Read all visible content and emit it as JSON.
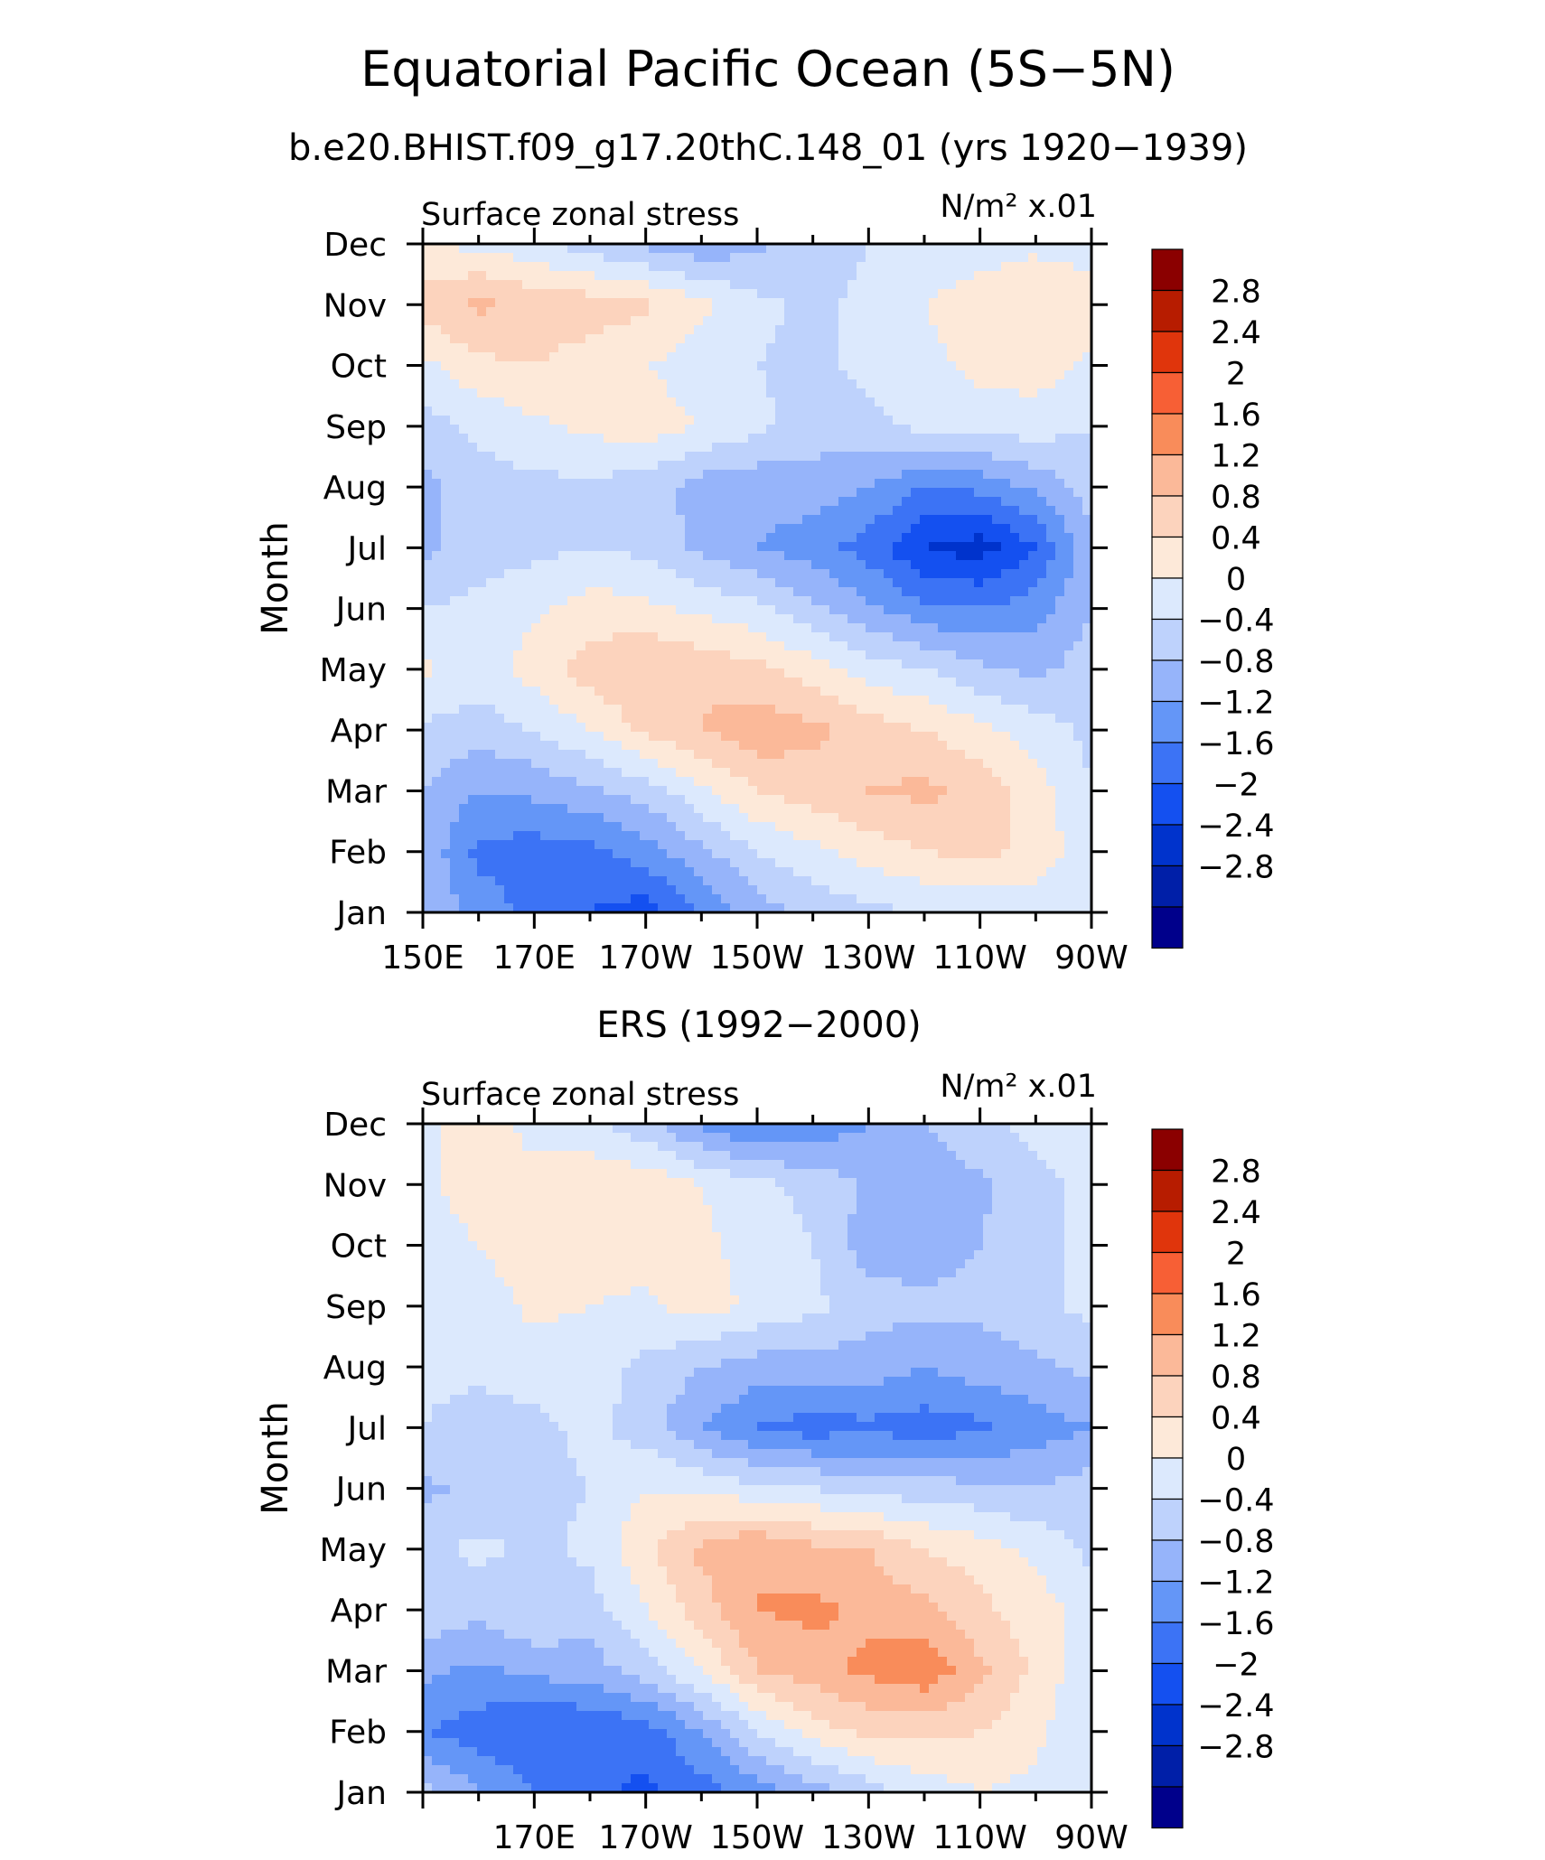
{
  "figure": {
    "title": "Equatorial Pacific Ocean (5S−5N)",
    "subtitle": "b.e20.BHIST.f09_g17.20thC.148_01 (yrs 1920−1939)"
  },
  "palette": [
    "#00008b",
    "#001fa8",
    "#0033cc",
    "#1450f0",
    "#3c73f5",
    "#6496f7",
    "#96b4fa",
    "#bed2fc",
    "#dce9fd",
    "#fde9d9",
    "#fcd3bd",
    "#fbb999",
    "#f98c5a",
    "#f75f35",
    "#e0350c",
    "#b71c00",
    "#8b0000"
  ],
  "chart_data": [
    {
      "type": "heatmap",
      "panel_title": "",
      "variable_label": "Surface zonal stress",
      "units_label": "N/m² x.01",
      "ylabel": "Month",
      "x": [
        150,
        160,
        170,
        180,
        190,
        200,
        210,
        220,
        230,
        240,
        250,
        260,
        270
      ],
      "x_tick_labels": [
        {
          "lon": 150,
          "label": "150E"
        },
        {
          "lon": 170,
          "label": "170E"
        },
        {
          "lon": 190,
          "label": "170W"
        },
        {
          "lon": 210,
          "label": "150W"
        },
        {
          "lon": 230,
          "label": "130W"
        },
        {
          "lon": 250,
          "label": "110W"
        },
        {
          "lon": 270,
          "label": "90W"
        }
      ],
      "y": [
        "Jan",
        "Feb",
        "Mar",
        "Apr",
        "May",
        "Jun",
        "Jul",
        "Aug",
        "Sep",
        "Oct",
        "Nov",
        "Dec"
      ],
      "levels": [
        -2.8,
        -2.4,
        -2,
        -1.6,
        -1.2,
        -0.8,
        -0.4,
        0,
        0.4,
        0.8,
        1.2,
        1.6,
        2,
        2.4,
        2.8
      ],
      "colorbar_labels": [
        "2.8",
        "2.4",
        "2",
        "1.6",
        "1.2",
        "0.8",
        "0.4",
        "0",
        "−0.4",
        "−0.8",
        "−1.2",
        "−1.6",
        "−2",
        "−2.4",
        "−2.8"
      ],
      "values": [
        [
          -0.4,
          -1.0,
          -1.3,
          -1.6,
          -1.8,
          -1.2,
          -0.6,
          -0.3,
          -0.1,
          0.0,
          0.1,
          0.1,
          0.0
        ],
        [
          -0.5,
          -1.3,
          -1.4,
          -1.3,
          -1.0,
          -0.5,
          0.0,
          0.3,
          0.6,
          0.8,
          0.9,
          0.7,
          0.1
        ],
        [
          -0.4,
          -0.8,
          -0.7,
          -0.5,
          -0.2,
          0.3,
          0.8,
          1.0,
          1.2,
          1.3,
          1.1,
          0.6,
          0.0
        ],
        [
          -0.1,
          -0.2,
          0.0,
          0.4,
          0.9,
          1.2,
          1.5,
          1.3,
          1.0,
          0.8,
          0.5,
          0.2,
          -0.1
        ],
        [
          0.5,
          0.2,
          0.6,
          1.0,
          1.2,
          1.1,
          0.9,
          0.6,
          0.2,
          0.0,
          -0.3,
          -0.5,
          -0.2
        ],
        [
          0.0,
          0.1,
          0.3,
          0.6,
          0.5,
          0.3,
          0.1,
          -0.3,
          -0.7,
          -1.1,
          -1.2,
          -1.0,
          -0.4
        ],
        [
          -0.5,
          -0.2,
          -0.1,
          0.0,
          -0.1,
          -0.5,
          -0.8,
          -1.0,
          -1.4,
          -2.0,
          -2.2,
          -1.6,
          -0.5
        ],
        [
          -0.5,
          -0.2,
          -0.1,
          -0.1,
          -0.2,
          -0.6,
          -0.7,
          -0.6,
          -0.8,
          -1.2,
          -1.1,
          -0.7,
          -0.2
        ],
        [
          -0.2,
          0.1,
          0.3,
          0.5,
          0.6,
          0.4,
          0.1,
          -0.2,
          -0.1,
          0.1,
          0.2,
          0.2,
          0.0
        ],
        [
          0.3,
          0.7,
          0.8,
          0.6,
          0.4,
          0.2,
          0.0,
          -0.1,
          0.1,
          0.3,
          0.5,
          0.6,
          0.3
        ],
        [
          1.0,
          1.3,
          1.1,
          1.0,
          0.9,
          0.5,
          0.1,
          -0.1,
          0.1,
          0.4,
          0.6,
          0.8,
          0.6
        ],
        [
          0.4,
          0.3,
          0.1,
          -0.2,
          -0.5,
          -0.7,
          -0.5,
          -0.2,
          0.0,
          0.1,
          0.2,
          0.3,
          0.2
        ]
      ]
    },
    {
      "type": "heatmap",
      "panel_title": "ERS (1992−2000)",
      "variable_label": "Surface zonal stress",
      "units_label": "N/m² x.01",
      "ylabel": "Month",
      "x": [
        150,
        160,
        170,
        180,
        190,
        200,
        210,
        220,
        230,
        240,
        250,
        260,
        270
      ],
      "x_tick_labels": [
        {
          "lon": 170,
          "label": "170E"
        },
        {
          "lon": 190,
          "label": "170W"
        },
        {
          "lon": 210,
          "label": "150W"
        },
        {
          "lon": 230,
          "label": "130W"
        },
        {
          "lon": 250,
          "label": "110W"
        },
        {
          "lon": 270,
          "label": "90W"
        }
      ],
      "y": [
        "Jan",
        "Feb",
        "Mar",
        "Apr",
        "May",
        "Jun",
        "Jul",
        "Aug",
        "Sep",
        "Oct",
        "Nov",
        "Dec"
      ],
      "levels": [
        -2.8,
        -2.4,
        -2,
        -1.6,
        -1.2,
        -0.8,
        -0.4,
        0,
        0.4,
        0.8,
        1.2,
        1.6,
        2,
        2.4,
        2.8
      ],
      "colorbar_labels": [
        "2.8",
        "2.4",
        "2",
        "1.6",
        "1.2",
        "0.8",
        "0.4",
        "0",
        "−0.4",
        "−0.8",
        "−1.2",
        "−1.6",
        "−2",
        "−2.4",
        "−2.8"
      ],
      "values": [
        [
          -0.2,
          -0.8,
          -1.2,
          -1.5,
          -1.7,
          -1.4,
          -1.0,
          -0.6,
          -0.2,
          0.2,
          0.4,
          0.3,
          0.2
        ],
        [
          -1.2,
          -1.4,
          -1.6,
          -1.6,
          -1.4,
          -0.8,
          0.0,
          0.6,
          0.9,
          0.9,
          0.8,
          0.5,
          0.0
        ],
        [
          -0.7,
          -0.9,
          -0.7,
          -0.6,
          -0.2,
          0.4,
          1.2,
          1.4,
          1.7,
          1.9,
          1.3,
          0.7,
          0.1
        ],
        [
          -0.1,
          -0.3,
          0.0,
          -0.2,
          0.4,
          1.0,
          1.6,
          1.7,
          1.5,
          1.3,
          0.9,
          0.6,
          0.2
        ],
        [
          -0.1,
          0.1,
          -0.1,
          0.1,
          0.7,
          1.3,
          1.6,
          1.3,
          1.2,
          0.8,
          0.6,
          0.3,
          -0.1
        ],
        [
          -0.5,
          -0.3,
          -0.1,
          0.0,
          0.4,
          0.3,
          0.1,
          0.0,
          -0.2,
          -0.2,
          -0.3,
          -0.4,
          -0.2
        ],
        [
          0.0,
          -0.2,
          -0.1,
          0.1,
          -0.2,
          -0.8,
          -1.2,
          -1.4,
          -1.3,
          -1.4,
          -1.3,
          -1.0,
          -0.8
        ],
        [
          0.1,
          0.1,
          0.2,
          0.2,
          -0.1,
          -0.4,
          -0.6,
          -0.6,
          -0.6,
          -0.8,
          -0.6,
          -0.5,
          -0.3
        ],
        [
          0.1,
          0.2,
          0.5,
          0.4,
          0.3,
          0.6,
          0.3,
          0.1,
          -0.2,
          -0.3,
          -0.3,
          -0.1,
          0.1
        ],
        [
          0.2,
          0.4,
          0.6,
          0.7,
          0.6,
          0.5,
          0.2,
          0.0,
          -0.6,
          -0.6,
          -0.4,
          -0.1,
          0.1
        ],
        [
          0.3,
          0.6,
          0.6,
          0.7,
          0.7,
          0.4,
          0.1,
          -0.1,
          -0.5,
          -0.6,
          -0.5,
          -0.1,
          0.1
        ],
        [
          0.2,
          0.7,
          0.2,
          0.1,
          -0.3,
          -0.9,
          -1.3,
          -1.1,
          -0.8,
          -0.4,
          -0.1,
          0.1,
          0.2
        ]
      ]
    }
  ]
}
